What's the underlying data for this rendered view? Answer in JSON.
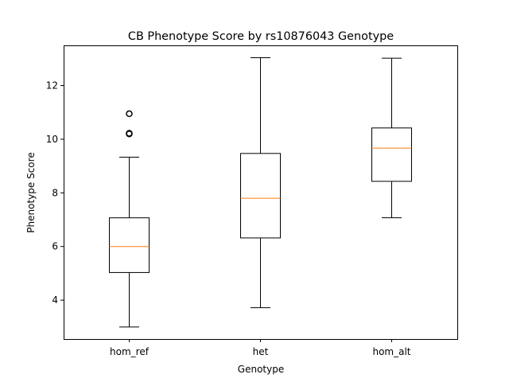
{
  "chart_data": {
    "type": "boxplot",
    "title": "CB Phenotype Score by rs10876043 Genotype",
    "xlabel": "Genotype",
    "ylabel": "Phenotype Score",
    "categories": [
      "hom_ref",
      "het",
      "hom_alt"
    ],
    "ylim": [
      2.55,
      13.5
    ],
    "yticks": [
      4,
      6,
      8,
      10,
      12
    ],
    "yticklabels": [
      "4",
      "6",
      "8",
      "10",
      "12"
    ],
    "grid": false,
    "boxes": [
      {
        "category": "hom_ref",
        "whisker_low": 3.0,
        "q1": 5.03,
        "median": 6.0,
        "q3": 7.07,
        "whisker_high": 9.33,
        "outliers": [
          10.2,
          10.22,
          10.95
        ]
      },
      {
        "category": "het",
        "whisker_low": 3.72,
        "q1": 6.32,
        "median": 7.8,
        "q3": 9.47,
        "whisker_high": 13.04,
        "outliers": []
      },
      {
        "category": "hom_alt",
        "whisker_low": 7.07,
        "q1": 8.43,
        "median": 9.67,
        "q3": 10.42,
        "whisker_high": 13.02,
        "outliers": []
      }
    ],
    "colors": {
      "box": "#000000",
      "median": "#ff7f0e",
      "outlier": "#000000"
    }
  }
}
